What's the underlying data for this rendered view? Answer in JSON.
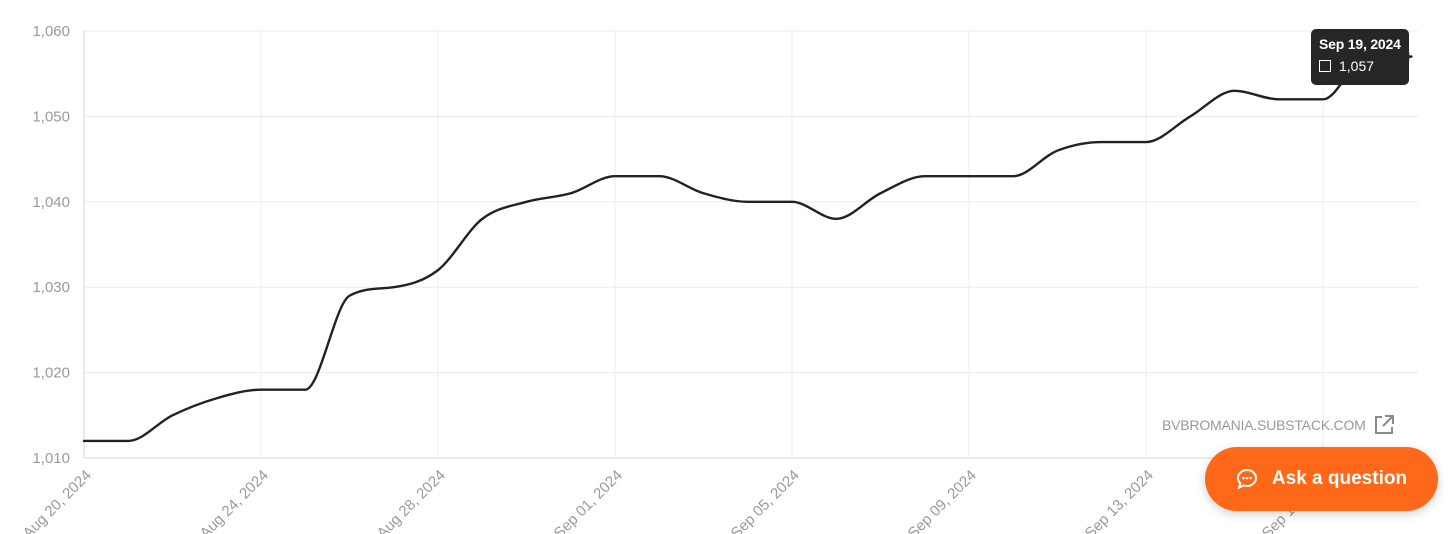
{
  "chart_data": {
    "type": "line",
    "title": "",
    "xlabel": "",
    "ylabel": "",
    "ylim": [
      1010,
      1060
    ],
    "grid": true,
    "y_ticks": [
      "1,010",
      "1,020",
      "1,030",
      "1,040",
      "1,050",
      "1,060"
    ],
    "x_tick_labels": [
      "Aug 20, 2024",
      "Aug 24, 2024",
      "Aug 28, 2024",
      "Sep 01, 2024",
      "Sep 05, 2024",
      "Sep 09, 2024",
      "Sep 13, 2024",
      "Sep 17, 2024"
    ],
    "x_tick_dates": [
      "2024-08-20",
      "2024-08-24",
      "2024-08-28",
      "2024-09-01",
      "2024-09-05",
      "2024-09-09",
      "2024-09-13",
      "2024-09-17"
    ],
    "series": [
      {
        "color": "#222222",
        "x": [
          "2024-08-20",
          "2024-08-21",
          "2024-08-22",
          "2024-08-23",
          "2024-08-24",
          "2024-08-25",
          "2024-08-26",
          "2024-08-27",
          "2024-08-28",
          "2024-08-29",
          "2024-08-30",
          "2024-08-31",
          "2024-09-01",
          "2024-09-02",
          "2024-09-03",
          "2024-09-04",
          "2024-09-05",
          "2024-09-06",
          "2024-09-07",
          "2024-09-08",
          "2024-09-09",
          "2024-09-10",
          "2024-09-11",
          "2024-09-12",
          "2024-09-13",
          "2024-09-14",
          "2024-09-15",
          "2024-09-16",
          "2024-09-17",
          "2024-09-18",
          "2024-09-19"
        ],
        "values": [
          1012,
          1012,
          1015,
          1017,
          1018,
          1018,
          1029,
          1030,
          1032,
          1038,
          1040,
          1041,
          1043,
          1043,
          1041,
          1040,
          1040,
          1038,
          1041,
          1043,
          1043,
          1043,
          1046,
          1047,
          1047,
          1050,
          1053,
          1052,
          1052,
          1057,
          1057
        ]
      }
    ]
  },
  "tooltip": {
    "date": "Sep 19, 2024",
    "value": "1,057"
  },
  "source": {
    "label": "BVBROMANIA.SUBSTACK.COM",
    "icon": "external-link-icon"
  },
  "ask_button": {
    "label": "Ask a question",
    "icon": "chat-bubble-icon",
    "color": "#ff6719"
  }
}
